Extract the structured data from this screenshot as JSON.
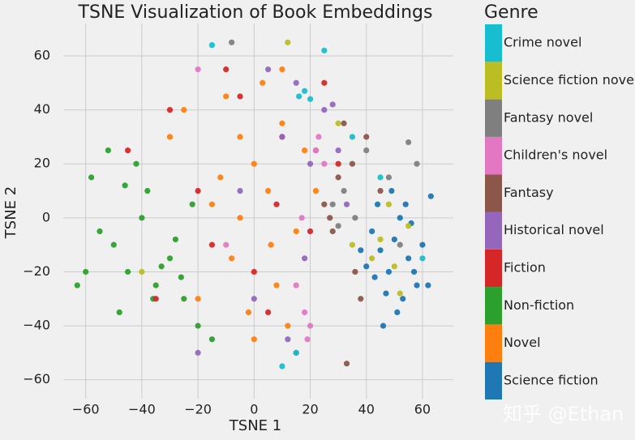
{
  "chart_data": {
    "type": "scatter",
    "title": "TSNE Visualization of Book Embeddings",
    "x_label": "TSNE 1",
    "y_label": "TSNE 2",
    "legend_title": "Genre",
    "watermark": "知乎 @Ethan",
    "xlim": [
      -68,
      71
    ],
    "ylim": [
      -67,
      72
    ],
    "grid": true,
    "xticks": [
      {
        "value": -60,
        "label": "−60"
      },
      {
        "value": -40,
        "label": "−40"
      },
      {
        "value": -20,
        "label": "−20"
      },
      0,
      20,
      40,
      60
    ],
    "yticks": [
      {
        "value": -60,
        "label": "−60"
      },
      {
        "value": -40,
        "label": "−40"
      },
      {
        "value": -20,
        "label": "−20"
      },
      0,
      20,
      40,
      60
    ],
    "series": [
      {
        "name": "Science fiction",
        "color": "#1f77b4",
        "x": [
          42,
          45,
          48,
          50,
          52,
          55,
          58,
          60,
          63,
          47,
          44,
          53,
          56,
          40,
          49,
          51,
          57,
          62,
          46,
          54,
          38,
          43
        ],
        "values": [
          -5,
          -12,
          -20,
          -8,
          0,
          -15,
          -25,
          -10,
          8,
          -28,
          5,
          -30,
          -2,
          -18,
          10,
          -35,
          -20,
          -25,
          -40,
          5,
          -12,
          -22
        ]
      },
      {
        "name": "Novel",
        "color": "#ff7f0e",
        "x": [
          -10,
          -5,
          0,
          5,
          10,
          15,
          -15,
          -20,
          -2,
          8,
          12,
          -8,
          3,
          18,
          -12,
          6,
          -25,
          0,
          10,
          -5,
          22,
          -30
        ],
        "values": [
          45,
          30,
          20,
          10,
          35,
          -5,
          5,
          -30,
          -35,
          -25,
          -40,
          -15,
          50,
          25,
          15,
          -10,
          40,
          -45,
          55,
          0,
          10,
          30
        ]
      },
      {
        "name": "Non-fiction",
        "color": "#2ca02c",
        "x": [
          -50,
          -45,
          -40,
          -35,
          -30,
          -25,
          -20,
          -55,
          -60,
          -48,
          -38,
          -28,
          -42,
          -33,
          -22,
          -15,
          -52,
          -46,
          -36,
          -26,
          -58,
          -63
        ],
        "values": [
          -10,
          -20,
          0,
          -25,
          -15,
          -30,
          -40,
          -5,
          -20,
          -35,
          10,
          -8,
          20,
          -18,
          5,
          -45,
          25,
          12,
          -30,
          -22,
          15,
          -25
        ]
      },
      {
        "name": "Fiction",
        "color": "#d62728",
        "x": [
          -45,
          -30,
          -10,
          0,
          10,
          20,
          30,
          -20,
          5,
          -5,
          15,
          -15,
          25,
          -35,
          8
        ],
        "values": [
          25,
          40,
          55,
          -20,
          30,
          -5,
          20,
          10,
          -35,
          45,
          -50,
          -10,
          50,
          -30,
          5
        ]
      },
      {
        "name": "Historical novel",
        "color": "#9467bd",
        "x": [
          10,
          15,
          20,
          25,
          30,
          5,
          -5,
          0,
          18,
          28,
          12,
          -20,
          33
        ],
        "values": [
          30,
          50,
          20,
          40,
          25,
          55,
          10,
          -30,
          -15,
          42,
          -45,
          -50,
          5
        ]
      },
      {
        "name": "Fantasy",
        "color": "#8c564b",
        "x": [
          25,
          30,
          35,
          40,
          28,
          32,
          38,
          22,
          45,
          27,
          36,
          33
        ],
        "values": [
          5,
          15,
          20,
          30,
          -5,
          35,
          -30,
          25,
          10,
          0,
          -20,
          -54
        ]
      },
      {
        "name": "Children's novel",
        "color": "#e377c2",
        "x": [
          18,
          20,
          22,
          15,
          25,
          19,
          -10,
          -20,
          17,
          23
        ],
        "values": [
          -35,
          -40,
          25,
          -25,
          20,
          -45,
          -10,
          55,
          0,
          30
        ]
      },
      {
        "name": "Fantasy novel",
        "color": "#7f7f7f",
        "x": [
          28,
          32,
          36,
          55,
          58,
          48,
          30,
          40,
          52,
          -8
        ],
        "values": [
          5,
          10,
          0,
          28,
          20,
          15,
          -3,
          25,
          -10,
          65
        ]
      },
      {
        "name": "Science fiction novel",
        "color": "#bcbd22",
        "x": [
          45,
          50,
          55,
          48,
          52,
          42,
          12,
          30,
          -40,
          35
        ],
        "values": [
          -8,
          -18,
          -3,
          5,
          -28,
          -15,
          65,
          35,
          -20,
          -10
        ]
      },
      {
        "name": "Crime novel",
        "color": "#17becf",
        "x": [
          16,
          18,
          20,
          15,
          -15,
          60,
          10,
          45,
          35,
          25
        ],
        "values": [
          45,
          47,
          44,
          -50,
          64,
          -15,
          -55,
          15,
          30,
          62
        ]
      }
    ]
  }
}
